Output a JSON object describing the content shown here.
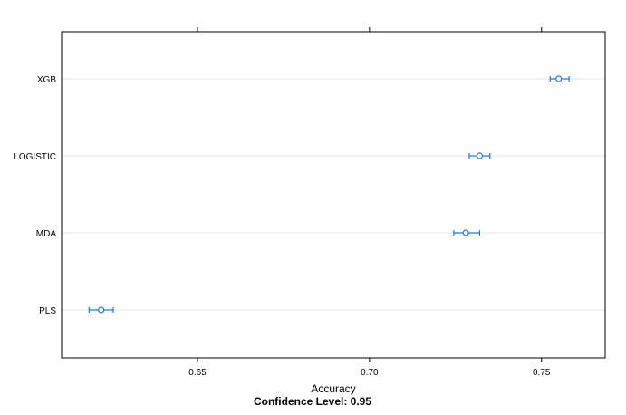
{
  "chart_data": {
    "type": "dotplot",
    "categories": [
      "XGB",
      "LOGISTIC",
      "MDA",
      "PLS"
    ],
    "series": [
      {
        "values": [
          0.755,
          0.732,
          0.728,
          0.622
        ],
        "lower": [
          0.7525,
          0.729,
          0.7245,
          0.6185
        ],
        "upper": [
          0.758,
          0.735,
          0.732,
          0.6255
        ]
      }
    ],
    "x_ticks": [
      0.65,
      0.7,
      0.75
    ],
    "x_tick_labels": [
      "0.65",
      "0.70",
      "0.75"
    ],
    "xlim": [
      0.6105,
      0.7685
    ],
    "xlabel": "Accuracy",
    "subtitle": "Confidence Level: 0.95",
    "grid": true,
    "colors": {
      "points": "#1f7ae0",
      "grid": "#e6e6e6",
      "frame": "#000000"
    }
  }
}
